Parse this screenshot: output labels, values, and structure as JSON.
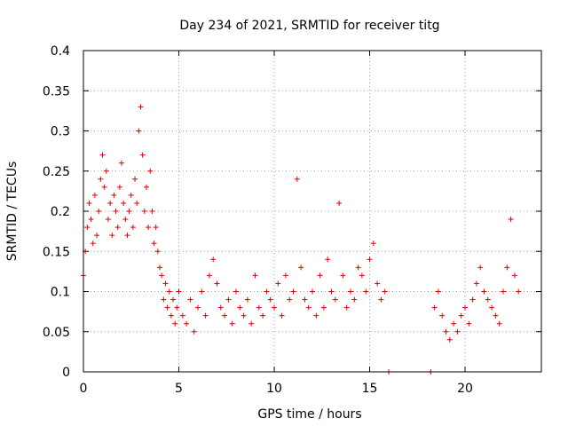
{
  "chart_data": {
    "type": "scatter",
    "title": "Day 234 of 2021, SRMTID for receiver titg",
    "xlabel": "GPS time / hours",
    "ylabel": "SRMTID / TECUs",
    "xlim": [
      0,
      24
    ],
    "ylim": [
      0,
      0.4
    ],
    "xticks": [
      0,
      5,
      10,
      15,
      20
    ],
    "xtick_labels": [
      "0",
      "5",
      "10",
      "15",
      "20"
    ],
    "yticks": [
      0,
      0.05,
      0.1,
      0.15,
      0.2,
      0.25,
      0.3,
      0.35,
      0.4
    ],
    "ytick_labels": [
      "0",
      "0.05",
      "0.1",
      "0.15",
      "0.2",
      "0.25",
      "0.3",
      "0.35",
      "0.4"
    ],
    "grid": true,
    "marker": "plus",
    "color": "#e00000",
    "series": [
      {
        "x": [
          0.0,
          0.1,
          0.2,
          0.3,
          0.4,
          0.5,
          0.6,
          0.7,
          0.8,
          0.9,
          1.0,
          1.1,
          1.2,
          1.3,
          1.4,
          1.5,
          1.6,
          1.7,
          1.8,
          1.9,
          2.0,
          2.1,
          2.2,
          2.3,
          2.4,
          2.5,
          2.6,
          2.7,
          2.8,
          2.9,
          3.0,
          3.1,
          3.2,
          3.3,
          3.4,
          3.5,
          3.6,
          3.7,
          3.8,
          3.9,
          4.0,
          4.1,
          4.2,
          4.3,
          4.4,
          4.5,
          4.6,
          4.7,
          4.8,
          4.9,
          5.0,
          5.2,
          5.4,
          5.6,
          5.8,
          6.0,
          6.2,
          6.4,
          6.6,
          6.8,
          7.0,
          7.2,
          7.4,
          7.6,
          7.8,
          8.0,
          8.2,
          8.4,
          8.6,
          8.8,
          9.0,
          9.2,
          9.4,
          9.6,
          9.8,
          10.0,
          10.2,
          10.4,
          10.6,
          10.8,
          11.0,
          11.2,
          11.4,
          11.6,
          11.8,
          12.0,
          12.2,
          12.4,
          12.6,
          12.8,
          13.0,
          13.2,
          13.4,
          13.6,
          13.8,
          14.0,
          14.2,
          14.4,
          14.6,
          14.8,
          15.0,
          15.2,
          15.4,
          15.6,
          15.8,
          16.0,
          18.2,
          18.4,
          18.6,
          18.8,
          19.0,
          19.2,
          19.4,
          19.6,
          19.8,
          20.0,
          20.2,
          20.4,
          20.6,
          20.8,
          21.0,
          21.2,
          21.4,
          21.6,
          21.8,
          22.0,
          22.2,
          22.4,
          22.6,
          22.8
        ],
        "y": [
          0.12,
          0.15,
          0.18,
          0.21,
          0.19,
          0.16,
          0.22,
          0.17,
          0.2,
          0.24,
          0.27,
          0.23,
          0.25,
          0.19,
          0.21,
          0.17,
          0.22,
          0.2,
          0.18,
          0.23,
          0.26,
          0.21,
          0.19,
          0.17,
          0.2,
          0.22,
          0.18,
          0.24,
          0.21,
          0.3,
          0.33,
          0.27,
          0.2,
          0.23,
          0.18,
          0.25,
          0.2,
          0.16,
          0.18,
          0.15,
          0.13,
          0.12,
          0.09,
          0.11,
          0.08,
          0.1,
          0.07,
          0.09,
          0.06,
          0.08,
          0.1,
          0.07,
          0.06,
          0.09,
          0.05,
          0.08,
          0.1,
          0.07,
          0.12,
          0.14,
          0.11,
          0.08,
          0.07,
          0.09,
          0.06,
          0.1,
          0.08,
          0.07,
          0.09,
          0.06,
          0.12,
          0.08,
          0.07,
          0.1,
          0.09,
          0.08,
          0.11,
          0.07,
          0.12,
          0.09,
          0.1,
          0.24,
          0.13,
          0.09,
          0.08,
          0.1,
          0.07,
          0.12,
          0.08,
          0.14,
          0.1,
          0.09,
          0.21,
          0.12,
          0.08,
          0.1,
          0.09,
          0.13,
          0.12,
          0.1,
          0.14,
          0.16,
          0.11,
          0.09,
          0.1,
          0.0,
          0.0,
          0.08,
          0.1,
          0.07,
          0.05,
          0.04,
          0.06,
          0.05,
          0.07,
          0.08,
          0.06,
          0.09,
          0.11,
          0.13,
          0.1,
          0.09,
          0.08,
          0.07,
          0.06,
          0.1,
          0.13,
          0.19,
          0.12,
          0.1
        ]
      }
    ]
  }
}
